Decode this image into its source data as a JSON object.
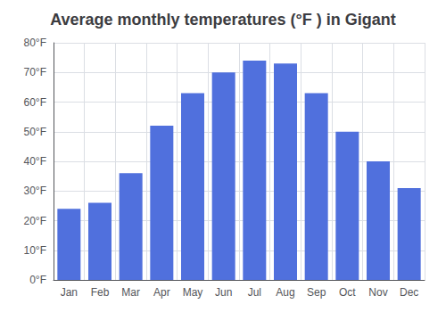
{
  "chart_data": {
    "type": "bar",
    "title": "Average monthly temperatures (°F ) in Gigant",
    "categories": [
      "Jan",
      "Feb",
      "Mar",
      "Apr",
      "May",
      "Jun",
      "Jul",
      "Aug",
      "Sep",
      "Oct",
      "Nov",
      "Dec"
    ],
    "values": [
      24,
      26,
      36,
      52,
      63,
      70,
      74,
      73,
      63,
      50,
      40,
      31
    ],
    "ylim": [
      0,
      80
    ],
    "yticks": [
      {
        "value": 0,
        "label": "0°F"
      },
      {
        "value": 10,
        "label": "10°F"
      },
      {
        "value": 20,
        "label": "20°F"
      },
      {
        "value": 30,
        "label": "30°F"
      },
      {
        "value": 40,
        "label": "40°F"
      },
      {
        "value": 50,
        "label": "50°F"
      },
      {
        "value": 60,
        "label": "60°F"
      },
      {
        "value": 70,
        "label": "70°F"
      },
      {
        "value": 80,
        "label": "80°F"
      }
    ],
    "grid": true
  }
}
